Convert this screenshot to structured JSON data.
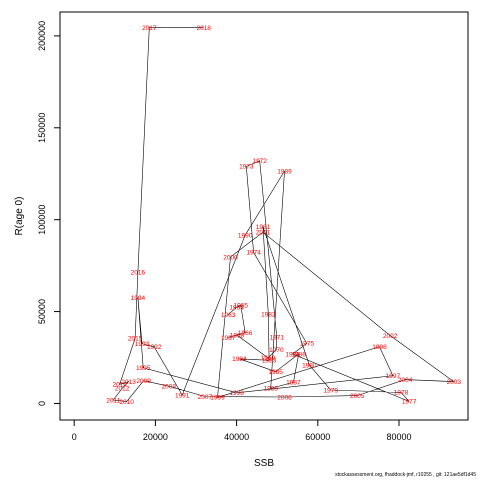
{
  "footer": "stockassessment.org, fhaddock-jmf, r10255 , git: 121ae5df1d45",
  "chart_data": {
    "type": "scatter",
    "connected": true,
    "title": "",
    "xlabel": "SSB",
    "ylabel": "R(age 0)",
    "xlim": [
      -3500,
      97000
    ],
    "ylim": [
      -9000,
      213000
    ],
    "x_ticks": [
      0,
      20000,
      40000,
      60000,
      80000
    ],
    "x_tick_labels": [
      "0",
      "20000",
      "40000",
      "60000",
      "80000"
    ],
    "y_ticks": [
      0,
      50000,
      100000,
      150000,
      200000
    ],
    "y_tick_labels": [
      "0",
      "50000",
      "100000",
      "150000",
      "200000"
    ],
    "colors": {
      "line": "#000000",
      "labels": "#ff0000"
    },
    "points": [
      {
        "year": "1963",
        "x": 37900,
        "y": 48300
      },
      {
        "year": "1964",
        "x": 40000,
        "y": 52300
      },
      {
        "year": "1965",
        "x": 41000,
        "y": 53500
      },
      {
        "year": "1966",
        "x": 42100,
        "y": 38600
      },
      {
        "year": "1967",
        "x": 37900,
        "y": 35900
      },
      {
        "year": "1968",
        "x": 40100,
        "y": 37200
      },
      {
        "year": "1969",
        "x": 47700,
        "y": 24800
      },
      {
        "year": "1970",
        "x": 49800,
        "y": 29200
      },
      {
        "year": "1971",
        "x": 49900,
        "y": 36000
      },
      {
        "year": "1972",
        "x": 45700,
        "y": 132000
      },
      {
        "year": "1973",
        "x": 42400,
        "y": 129000
      },
      {
        "year": "1974",
        "x": 44200,
        "y": 82200
      },
      {
        "year": "1975",
        "x": 57300,
        "y": 32700
      },
      {
        "year": "1976",
        "x": 53800,
        "y": 26900
      },
      {
        "year": "1977",
        "x": 82500,
        "y": 1100
      },
      {
        "year": "1978",
        "x": 80500,
        "y": 6000
      },
      {
        "year": "1979",
        "x": 63200,
        "y": 7300
      },
      {
        "year": "1980",
        "x": 57900,
        "y": 20900
      },
      {
        "year": "1981",
        "x": 46500,
        "y": 96100
      },
      {
        "year": "1982",
        "x": 47800,
        "y": 48600
      },
      {
        "year": "1983",
        "x": 48000,
        "y": 23500
      },
      {
        "year": "1984",
        "x": 40700,
        "y": 24300
      },
      {
        "year": "1985",
        "x": 49600,
        "y": 17300
      },
      {
        "year": "1986",
        "x": 55300,
        "y": 26900
      },
      {
        "year": "1987",
        "x": 54000,
        "y": 11500
      },
      {
        "year": "1988",
        "x": 48400,
        "y": 8200
      },
      {
        "year": "1989",
        "x": 51800,
        "y": 126500
      },
      {
        "year": "1990",
        "x": 42100,
        "y": 91500
      },
      {
        "year": "1991",
        "x": 26600,
        "y": 4600
      },
      {
        "year": "1992",
        "x": 19700,
        "y": 30800
      },
      {
        "year": "1993",
        "x": 16700,
        "y": 32500
      },
      {
        "year": "1994",
        "x": 15700,
        "y": 57600
      },
      {
        "year": "1995",
        "x": 17000,
        "y": 19400
      },
      {
        "year": "1996",
        "x": 40000,
        "y": 5800
      },
      {
        "year": "1997",
        "x": 78500,
        "y": 15100
      },
      {
        "year": "1998",
        "x": 75200,
        "y": 30900
      },
      {
        "year": "1999",
        "x": 35300,
        "y": 3300
      },
      {
        "year": "2000",
        "x": 38500,
        "y": 79700
      },
      {
        "year": "2001",
        "x": 46500,
        "y": 93200
      },
      {
        "year": "2002",
        "x": 77800,
        "y": 37000
      },
      {
        "year": "2003",
        "x": 93500,
        "y": 11900
      },
      {
        "year": "2004",
        "x": 81500,
        "y": 13000
      },
      {
        "year": "2005",
        "x": 69700,
        "y": 4300
      },
      {
        "year": "2006",
        "x": 51800,
        "y": 3500
      },
      {
        "year": "2007",
        "x": 32200,
        "y": 3800
      },
      {
        "year": "2008",
        "x": 23300,
        "y": 9400
      },
      {
        "year": "2009",
        "x": 17100,
        "y": 12400
      },
      {
        "year": "2010",
        "x": 12900,
        "y": 1000
      },
      {
        "year": "2011",
        "x": 9600,
        "y": 1900
      },
      {
        "year": "2012",
        "x": 11800,
        "y": 8200
      },
      {
        "year": "2013",
        "x": 13400,
        "y": 11900
      },
      {
        "year": "2014",
        "x": 11200,
        "y": 10400
      },
      {
        "year": "2015",
        "x": 15000,
        "y": 35400
      },
      {
        "year": "2016",
        "x": 15700,
        "y": 71400
      },
      {
        "year": "2017",
        "x": 18500,
        "y": 204500
      },
      {
        "year": "2018",
        "x": 31900,
        "y": 204500
      }
    ]
  }
}
